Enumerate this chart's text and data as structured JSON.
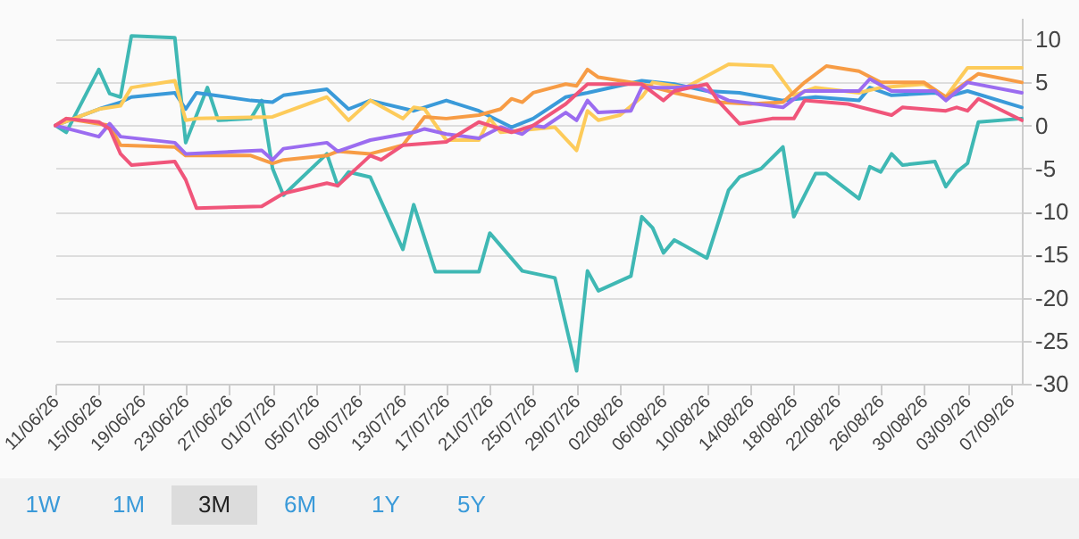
{
  "chart_data": {
    "type": "line",
    "xlim": [
      "--06-11",
      "--09-08"
    ],
    "xticks": [
      {
        "value": "--06-11",
        "label": "11/06/26"
      },
      {
        "value": "--06-15",
        "label": "15/06/26"
      },
      {
        "value": "--06-19",
        "label": "19/06/26"
      },
      {
        "value": "--06-23",
        "label": "23/06/26"
      },
      {
        "value": "--06-27",
        "label": "27/06/26"
      },
      {
        "value": "--07-01",
        "label": "01/07/26"
      },
      {
        "value": "--07-05",
        "label": "05/07/26"
      },
      {
        "value": "--07-09",
        "label": "09/07/26"
      },
      {
        "value": "--07-13",
        "label": "13/07/26"
      },
      {
        "value": "--07-17",
        "label": "17/07/26"
      },
      {
        "value": "--07-21",
        "label": "21/07/26"
      },
      {
        "value": "--07-25",
        "label": "25/07/26"
      },
      {
        "value": "--07-29",
        "label": "29/07/26"
      },
      {
        "value": "--08-02",
        "label": "02/08/26"
      },
      {
        "value": "--08-06",
        "label": "06/08/26"
      },
      {
        "value": "--08-10",
        "label": "10/08/26"
      },
      {
        "value": "--08-14",
        "label": "14/08/26"
      },
      {
        "value": "--08-18",
        "label": "18/08/26"
      },
      {
        "value": "--08-22",
        "label": "22/08/26"
      },
      {
        "value": "--08-26",
        "label": "26/08/26"
      },
      {
        "value": "--08-30",
        "label": "30/08/26"
      },
      {
        "value": "--09-03",
        "label": "03/09/26"
      },
      {
        "value": "--09-07",
        "label": "07/09/26"
      }
    ],
    "ylim": [
      -30,
      12.5
    ],
    "yticks": [
      -30,
      -25,
      -20,
      -15,
      -10,
      -5,
      0,
      5,
      10
    ],
    "grid": "y",
    "line_style": "solid",
    "annotations": [
      "1W",
      "1M",
      "3M",
      "6M",
      "1Y",
      "5Y"
    ],
    "series": [
      {
        "color": "#3fb8b4",
        "x": [
          "--06-11",
          "--06-12",
          "--06-15",
          "--06-16",
          "--06-17",
          "--06-18",
          "--06-22",
          "--06-23",
          "--06-25",
          "--06-26",
          "--06-29",
          "--06-30",
          "--07-01",
          "--07-02",
          "--07-06",
          "--07-07",
          "--07-08",
          "--07-10",
          "--07-13",
          "--07-14",
          "--07-16",
          "--07-20",
          "--07-21",
          "--07-24",
          "--07-27",
          "--07-29",
          "--07-30",
          "--07-31",
          "--08-03",
          "--08-04",
          "--08-05",
          "--08-06",
          "--08-07",
          "--08-10",
          "--08-12",
          "--08-13",
          "--08-15",
          "--08-17",
          "--08-18",
          "--08-20",
          "--08-21",
          "--08-24",
          "--08-25",
          "--08-26",
          "--08-27",
          "--08-28",
          "--08-31",
          "--09-01",
          "--09-02",
          "--09-03",
          "--09-04",
          "--09-08"
        ],
        "values": [
          0,
          -0.8,
          6.5,
          3.7,
          3.3,
          10.4,
          10.2,
          -2,
          4.4,
          0.6,
          0.8,
          2.9,
          -5,
          -8.1,
          -3.3,
          -7,
          -5.4,
          -6,
          -14.4,
          -9.2,
          -17,
          -17,
          -12.5,
          -16.9,
          -17.7,
          -28.5,
          -16.9,
          -19.2,
          -17.5,
          -10.6,
          -11.9,
          -14.8,
          -13.3,
          -15.4,
          -7.5,
          -6,
          -5,
          -2.5,
          -10.6,
          -5.6,
          -5.6,
          -8.5,
          -4.8,
          -5.4,
          -3.3,
          -4.6,
          -4.2,
          -7.1,
          -5.4,
          -4.4,
          0.4,
          0.8
        ]
      },
      {
        "color": "#3a9ad9",
        "x": [
          "--06-11",
          "--06-15",
          "--06-17",
          "--06-18",
          "--06-22",
          "--06-23",
          "--06-24",
          "--06-29",
          "--07-01",
          "--07-02",
          "--07-06",
          "--07-08",
          "--07-10",
          "--07-14",
          "--07-17",
          "--07-20",
          "--07-23",
          "--07-25",
          "--07-28",
          "--07-30",
          "--08-04",
          "--08-07",
          "--08-10",
          "--08-13",
          "--08-17",
          "--08-20",
          "--08-24",
          "--08-25",
          "--08-27",
          "--08-31",
          "--09-01",
          "--09-03",
          "--09-08"
        ],
        "values": [
          0,
          1.9,
          2.7,
          3.3,
          3.8,
          1.9,
          3.8,
          2.9,
          2.7,
          3.5,
          4.2,
          1.9,
          2.9,
          1.7,
          2.9,
          1.7,
          -0.2,
          0.8,
          3.3,
          3.8,
          5.2,
          4.8,
          4,
          3.8,
          2.9,
          3.3,
          2.9,
          4.4,
          3.5,
          3.8,
          3.3,
          4,
          2.1
        ]
      },
      {
        "color": "#fdcb5a",
        "x": [
          "--06-11",
          "--06-15",
          "--06-17",
          "--06-18",
          "--06-22",
          "--06-23",
          "--06-24",
          "--07-01",
          "--07-06",
          "--07-08",
          "--07-10",
          "--07-13",
          "--07-14",
          "--07-15",
          "--07-17",
          "--07-20",
          "--07-21",
          "--07-22",
          "--07-27",
          "--07-29",
          "--07-30",
          "--07-31",
          "--08-02",
          "--08-04",
          "--08-05",
          "--08-08",
          "--08-12",
          "--08-16",
          "--08-18",
          "--08-20",
          "--08-24",
          "--08-26",
          "--08-30",
          "--09-01",
          "--09-03",
          "--09-08"
        ],
        "values": [
          0,
          1.9,
          2.3,
          4.4,
          5.2,
          0.6,
          0.8,
          1,
          3.3,
          0.6,
          2.9,
          0.8,
          2.1,
          1.9,
          -1.7,
          -1.7,
          0.8,
          -0.8,
          -0.2,
          -2.9,
          1.7,
          0.6,
          1.2,
          3.3,
          5,
          4.4,
          7.1,
          6.9,
          3.5,
          4.4,
          3.8,
          4.4,
          4.8,
          3.3,
          6.7,
          6.7
        ]
      },
      {
        "color": "#f79c45",
        "x": [
          "--06-11",
          "--06-12",
          "--06-15",
          "--06-16",
          "--06-17",
          "--06-22",
          "--06-23",
          "--06-29",
          "--07-01",
          "--07-02",
          "--07-06",
          "--07-07",
          "--07-10",
          "--07-13",
          "--07-15",
          "--07-17",
          "--07-20",
          "--07-22",
          "--07-23",
          "--07-24",
          "--07-25",
          "--07-28",
          "--07-29",
          "--07-30",
          "--07-31",
          "--08-04",
          "--08-07",
          "--08-11",
          "--08-14",
          "--08-17",
          "--08-19",
          "--08-21",
          "--08-24",
          "--08-26",
          "--08-30",
          "--09-01",
          "--09-04",
          "--09-08"
        ],
        "values": [
          0,
          0.8,
          0.2,
          0,
          -2.3,
          -2.5,
          -3.5,
          -3.5,
          -4.4,
          -4,
          -3.5,
          -3,
          -3.3,
          -2.3,
          1,
          0.8,
          1.2,
          1.9,
          3.1,
          2.7,
          3.8,
          4.8,
          4.6,
          6.5,
          5.6,
          4.8,
          3.8,
          2.7,
          2.5,
          2.7,
          5,
          6.9,
          6.3,
          5,
          5,
          3.3,
          6,
          5
        ]
      },
      {
        "color": "#9b6cf0",
        "x": [
          "--06-11",
          "--06-15",
          "--06-16",
          "--06-17",
          "--06-22",
          "--06-23",
          "--06-30",
          "--07-01",
          "--07-02",
          "--07-06",
          "--07-07",
          "--07-10",
          "--07-14",
          "--07-15",
          "--07-17",
          "--07-20",
          "--07-22",
          "--07-24",
          "--07-25",
          "--07-26",
          "--07-28",
          "--07-29",
          "--07-30",
          "--07-31",
          "--08-03",
          "--08-04",
          "--08-07",
          "--08-09",
          "--08-12",
          "--08-17",
          "--08-19",
          "--08-24",
          "--08-25",
          "--08-27",
          "--08-31",
          "--09-01",
          "--09-03",
          "--09-08"
        ],
        "values": [
          0,
          -1.3,
          0.2,
          -1.3,
          -2,
          -3.3,
          -2.9,
          -4,
          -2.7,
          -2,
          -3,
          -1.7,
          -0.8,
          -0.4,
          -1,
          -1.5,
          -0.2,
          -1,
          0,
          -0.2,
          1.5,
          0.6,
          2.9,
          1.5,
          1.7,
          4.4,
          4.4,
          4.6,
          2.9,
          2.1,
          4,
          4,
          5.4,
          4,
          4,
          2.9,
          5,
          3.8
        ]
      },
      {
        "color": "#f0557a",
        "x": [
          "--06-11",
          "--06-12",
          "--06-15",
          "--06-16",
          "--06-17",
          "--06-18",
          "--06-22",
          "--06-23",
          "--06-24",
          "--06-30",
          "--07-02",
          "--07-06",
          "--07-07",
          "--07-10",
          "--07-11",
          "--07-13",
          "--07-17",
          "--07-20",
          "--07-23",
          "--07-25",
          "--07-28",
          "--07-30",
          "--08-01",
          "--08-04",
          "--08-06",
          "--08-07",
          "--08-10",
          "--08-11",
          "--08-13",
          "--08-16",
          "--08-18",
          "--08-19",
          "--08-23",
          "--08-27",
          "--08-28",
          "--09-01",
          "--09-02",
          "--09-03",
          "--09-04",
          "--09-08"
        ],
        "values": [
          0,
          0.8,
          0.4,
          -0.4,
          -3.3,
          -4.6,
          -4.2,
          -6.3,
          -9.6,
          -9.4,
          -7.9,
          -6.7,
          -7,
          -3.5,
          -4,
          -2.3,
          -1.9,
          0.4,
          -0.8,
          0,
          2.5,
          4.8,
          4.8,
          4.8,
          2.9,
          4,
          4.8,
          2.9,
          0.2,
          0.8,
          0.8,
          2.9,
          2.5,
          1.2,
          2.1,
          1.7,
          2.1,
          1.7,
          3.1,
          0.6
        ]
      }
    ]
  }
}
